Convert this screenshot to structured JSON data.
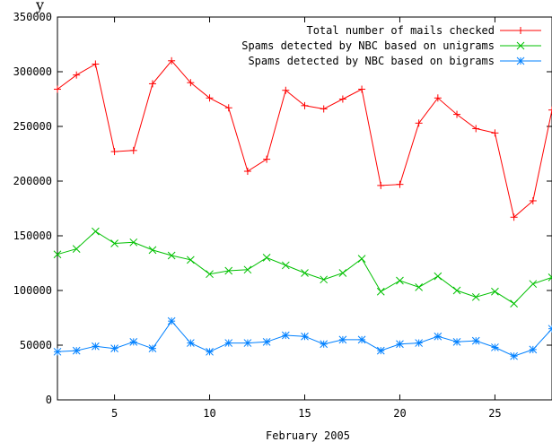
{
  "chart_data": {
    "type": "line",
    "title": "",
    "title_fragment": "y",
    "xlabel": "February 2005",
    "ylabel": "",
    "xlim": [
      2,
      28
    ],
    "ylim": [
      0,
      350000
    ],
    "x_ticks": [
      5,
      10,
      15,
      20,
      25
    ],
    "y_ticks": [
      0,
      50000,
      100000,
      150000,
      200000,
      250000,
      300000,
      350000
    ],
    "grid": false,
    "legend_position": "top-right",
    "x": [
      2,
      3,
      4,
      5,
      6,
      7,
      8,
      9,
      10,
      11,
      12,
      13,
      14,
      15,
      16,
      17,
      18,
      19,
      20,
      21,
      22,
      23,
      24,
      25,
      26,
      27,
      28
    ],
    "series": [
      {
        "name": "Total number of mails checked",
        "color": "#ff0000",
        "marker": "plus",
        "values": [
          284000,
          297000,
          307000,
          227000,
          228000,
          289000,
          310000,
          290000,
          276000,
          267000,
          209000,
          220000,
          283000,
          269000,
          266000,
          275000,
          284000,
          196000,
          197000,
          253000,
          276000,
          261000,
          248000,
          244000,
          167000,
          182000,
          265000
        ]
      },
      {
        "name": "Spams detected by NBC based on unigrams",
        "color": "#00c000",
        "marker": "cross",
        "values": [
          133000,
          138000,
          154000,
          143000,
          144000,
          137000,
          132000,
          128000,
          115000,
          118000,
          119000,
          130000,
          123000,
          116000,
          110000,
          116000,
          129000,
          99000,
          109000,
          103000,
          113000,
          100000,
          94000,
          99000,
          88000,
          106000,
          112000
        ]
      },
      {
        "name": "Spams detected by NBC based on bigrams",
        "color": "#0080ff",
        "marker": "star",
        "values": [
          44000,
          45000,
          49000,
          47000,
          53000,
          47000,
          72000,
          52000,
          44000,
          52000,
          52000,
          53000,
          59000,
          58000,
          51000,
          55000,
          55000,
          45000,
          51000,
          52000,
          58000,
          53000,
          54000,
          48000,
          40000,
          46000,
          65000
        ]
      }
    ]
  }
}
